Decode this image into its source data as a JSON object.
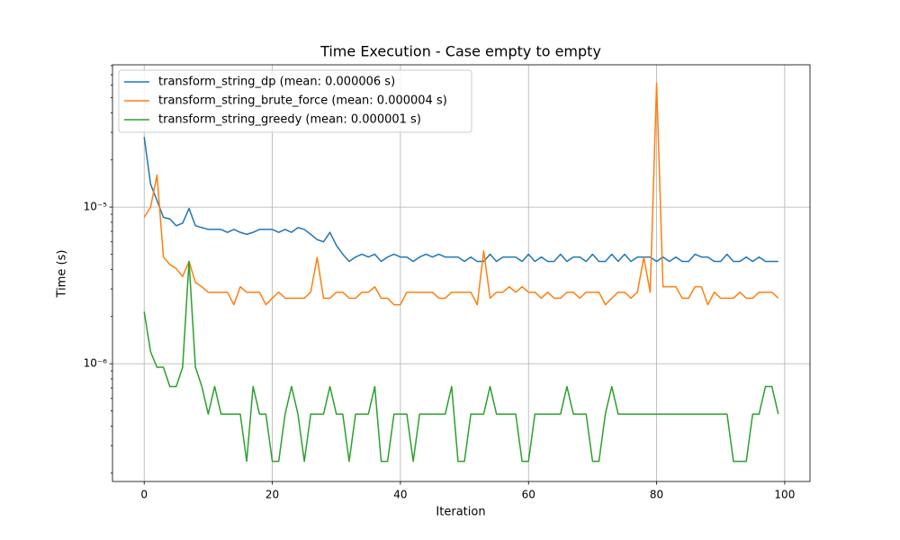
{
  "chart_data": {
    "type": "line",
    "title": "Time Execution - Case empty to empty",
    "xlabel": "Iteration",
    "ylabel": "Time (s)",
    "log_y": true,
    "grid": true,
    "legend": "upper left",
    "xlim": [
      -4.95,
      103.95
    ],
    "xticks": [
      0,
      20,
      40,
      60,
      80,
      100
    ],
    "ylim": [
      1.77e-07,
      8.1e-05
    ],
    "yticks": [
      {
        "value": 1e-06,
        "label": "10⁻⁶"
      },
      {
        "value": 1e-05,
        "label": "10⁻⁵"
      }
    ],
    "yticks_minor": [
      2e-07,
      3e-07,
      4e-07,
      5e-07,
      6e-07,
      7e-07,
      8e-07,
      9e-07,
      2e-06,
      3e-06,
      4e-06,
      5e-06,
      6e-06,
      7e-06,
      8e-06,
      9e-06,
      2e-05,
      3e-05,
      4e-05,
      5e-05,
      6e-05,
      7e-05,
      8e-05
    ],
    "x": [
      0,
      1,
      2,
      3,
      4,
      5,
      6,
      7,
      8,
      9,
      10,
      11,
      12,
      13,
      14,
      15,
      16,
      17,
      18,
      19,
      20,
      21,
      22,
      23,
      24,
      25,
      26,
      27,
      28,
      29,
      30,
      31,
      32,
      33,
      34,
      35,
      36,
      37,
      38,
      39,
      40,
      41,
      42,
      43,
      44,
      45,
      46,
      47,
      48,
      49,
      50,
      51,
      52,
      53,
      54,
      55,
      56,
      57,
      58,
      59,
      60,
      61,
      62,
      63,
      64,
      65,
      66,
      67,
      68,
      69,
      70,
      71,
      72,
      73,
      74,
      75,
      76,
      77,
      78,
      79,
      80,
      81,
      82,
      83,
      84,
      85,
      86,
      87,
      88,
      89,
      90,
      91,
      92,
      93,
      94,
      95,
      96,
      97,
      98,
      99
    ],
    "series": [
      {
        "name": "transform_string_dp (mean: 0.000006 s)",
        "color": "#1f77b4",
        "values": [
          2.8e-05,
          1.4e-05,
          1.1e-05,
          8.6e-06,
          8.4e-06,
          7.6e-06,
          7.9e-06,
          9.8e-06,
          7.6e-06,
          7.4e-06,
          7.2e-06,
          7.2e-06,
          7.2e-06,
          6.9e-06,
          7.2e-06,
          6.9e-06,
          6.7e-06,
          6.9e-06,
          7.2e-06,
          7.2e-06,
          7.2e-06,
          6.9e-06,
          7.2e-06,
          6.9e-06,
          7.4e-06,
          7.2e-06,
          6.7e-06,
          6.2e-06,
          6e-06,
          6.9e-06,
          5.7e-06,
          5e-06,
          4.5e-06,
          4.8e-06,
          5e-06,
          4.8e-06,
          5e-06,
          4.5e-06,
          4.8e-06,
          5e-06,
          4.8e-06,
          4.8e-06,
          4.5e-06,
          4.8e-06,
          5e-06,
          4.8e-06,
          5e-06,
          4.8e-06,
          4.8e-06,
          4.8e-06,
          4.5e-06,
          4.8e-06,
          4.5e-06,
          4.5e-06,
          5e-06,
          4.5e-06,
          4.8e-06,
          4.8e-06,
          4.8e-06,
          4.5e-06,
          5e-06,
          4.5e-06,
          4.8e-06,
          4.5e-06,
          4.5e-06,
          5e-06,
          4.5e-06,
          4.8e-06,
          4.8e-06,
          4.5e-06,
          5e-06,
          4.5e-06,
          4.5e-06,
          5e-06,
          4.5e-06,
          5e-06,
          4.5e-06,
          4.8e-06,
          4.8e-06,
          4.8e-06,
          4.5e-06,
          4.8e-06,
          4.5e-06,
          4.8e-06,
          4.5e-06,
          4.5e-06,
          5e-06,
          4.8e-06,
          4.8e-06,
          4.5e-06,
          4.5e-06,
          5e-06,
          4.5e-06,
          4.5e-06,
          4.8e-06,
          4.5e-06,
          4.8e-06,
          4.5e-06,
          4.5e-06,
          4.5e-06
        ]
      },
      {
        "name": "transform_string_brute_force (mean: 0.000004 s)",
        "color": "#ff7f0e",
        "values": [
          8.6e-06,
          1e-05,
          1.6e-05,
          4.8e-06,
          4.3e-06,
          4.05e-06,
          3.6e-06,
          4.5e-06,
          3.3e-06,
          3.1e-06,
          2.86e-06,
          2.86e-06,
          2.86e-06,
          2.86e-06,
          2.38e-06,
          3.1e-06,
          2.86e-06,
          2.86e-06,
          2.86e-06,
          2.38e-06,
          2.62e-06,
          2.86e-06,
          2.62e-06,
          2.62e-06,
          2.62e-06,
          2.62e-06,
          2.86e-06,
          4.77e-06,
          2.62e-06,
          2.62e-06,
          2.86e-06,
          2.86e-06,
          2.62e-06,
          2.62e-06,
          2.86e-06,
          2.86e-06,
          3.1e-06,
          2.62e-06,
          2.62e-06,
          2.38e-06,
          2.38e-06,
          2.86e-06,
          2.86e-06,
          2.86e-06,
          2.86e-06,
          2.86e-06,
          2.62e-06,
          2.62e-06,
          2.86e-06,
          2.86e-06,
          2.86e-06,
          2.86e-06,
          2.38e-06,
          5.25e-06,
          2.62e-06,
          2.86e-06,
          2.86e-06,
          3.1e-06,
          2.86e-06,
          3.1e-06,
          2.86e-06,
          2.86e-06,
          2.62e-06,
          2.86e-06,
          2.62e-06,
          2.62e-06,
          2.86e-06,
          2.86e-06,
          2.62e-06,
          2.86e-06,
          2.86e-06,
          2.86e-06,
          2.38e-06,
          2.62e-06,
          2.86e-06,
          2.86e-06,
          2.62e-06,
          2.86e-06,
          4.77e-06,
          2.86e-06,
          6.2e-05,
          3.1e-06,
          3.1e-06,
          3.1e-06,
          2.62e-06,
          2.62e-06,
          3.1e-06,
          3.1e-06,
          2.38e-06,
          2.86e-06,
          2.62e-06,
          2.62e-06,
          2.62e-06,
          2.86e-06,
          2.62e-06,
          2.62e-06,
          2.86e-06,
          2.86e-06,
          2.86e-06,
          2.62e-06
        ]
      },
      {
        "name": "transform_string_greedy (mean: 0.000001 s)",
        "color": "#2ca02c",
        "values": [
          2.15e-06,
          1.19e-06,
          9.5e-07,
          9.5e-07,
          7.15e-07,
          7.15e-07,
          9.5e-07,
          4.5e-06,
          9.5e-07,
          7.15e-07,
          4.77e-07,
          7.15e-07,
          4.77e-07,
          4.77e-07,
          4.77e-07,
          4.77e-07,
          2.38e-07,
          7.15e-07,
          4.77e-07,
          4.77e-07,
          2.38e-07,
          2.38e-07,
          4.77e-07,
          7.15e-07,
          4.77e-07,
          2.38e-07,
          4.77e-07,
          4.77e-07,
          4.77e-07,
          7.15e-07,
          4.77e-07,
          4.77e-07,
          2.38e-07,
          4.77e-07,
          4.77e-07,
          4.77e-07,
          7.15e-07,
          2.38e-07,
          2.38e-07,
          4.77e-07,
          4.77e-07,
          4.77e-07,
          2.38e-07,
          4.77e-07,
          4.77e-07,
          4.77e-07,
          4.77e-07,
          4.77e-07,
          7.15e-07,
          2.38e-07,
          2.38e-07,
          4.77e-07,
          4.77e-07,
          4.77e-07,
          7.15e-07,
          4.77e-07,
          4.77e-07,
          4.77e-07,
          4.77e-07,
          2.38e-07,
          2.38e-07,
          4.77e-07,
          4.77e-07,
          4.77e-07,
          4.77e-07,
          4.77e-07,
          7.15e-07,
          4.77e-07,
          4.77e-07,
          4.77e-07,
          2.38e-07,
          2.38e-07,
          4.77e-07,
          7.15e-07,
          4.77e-07,
          4.77e-07,
          4.77e-07,
          4.77e-07,
          4.77e-07,
          4.77e-07,
          4.77e-07,
          4.77e-07,
          4.77e-07,
          4.77e-07,
          4.77e-07,
          4.77e-07,
          4.77e-07,
          4.77e-07,
          4.77e-07,
          4.77e-07,
          4.77e-07,
          4.77e-07,
          2.38e-07,
          2.38e-07,
          2.38e-07,
          4.77e-07,
          4.77e-07,
          7.15e-07,
          7.15e-07,
          4.77e-07
        ]
      }
    ]
  }
}
